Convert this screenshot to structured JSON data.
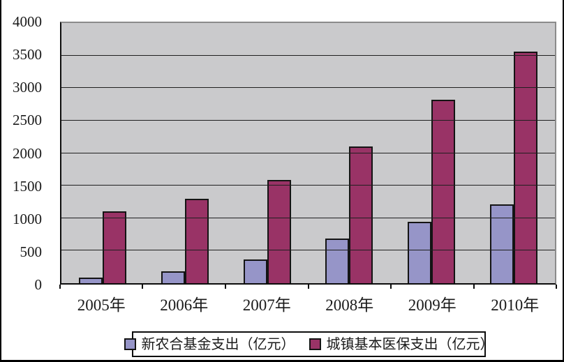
{
  "chart_data": {
    "type": "bar",
    "title": "",
    "xlabel": "",
    "ylabel": "",
    "categories": [
      "2005年",
      "2006年",
      "2007年",
      "2008年",
      "2009年",
      "2010年"
    ],
    "series": [
      {
        "name": "新农合基金支出（亿元）",
        "color": "#9695C8",
        "values": [
          62,
          156,
          347,
          662,
          923,
          1188
        ]
      },
      {
        "name": "城镇基本医保支出（亿元）",
        "color": "#993366",
        "values": [
          1079,
          1277,
          1562,
          2084,
          2797,
          3538
        ]
      }
    ],
    "ylim": [
      0,
      4000
    ],
    "ytick_step": 500,
    "y_tick_labels": [
      "0",
      "500",
      "1000",
      "1500",
      "2000",
      "2500",
      "3000",
      "3500",
      "4000"
    ],
    "grid": "horizontal",
    "gridline_color": "#1f1f1f",
    "plot_bg_color": "#cacacc",
    "legend_position": "bottom"
  }
}
